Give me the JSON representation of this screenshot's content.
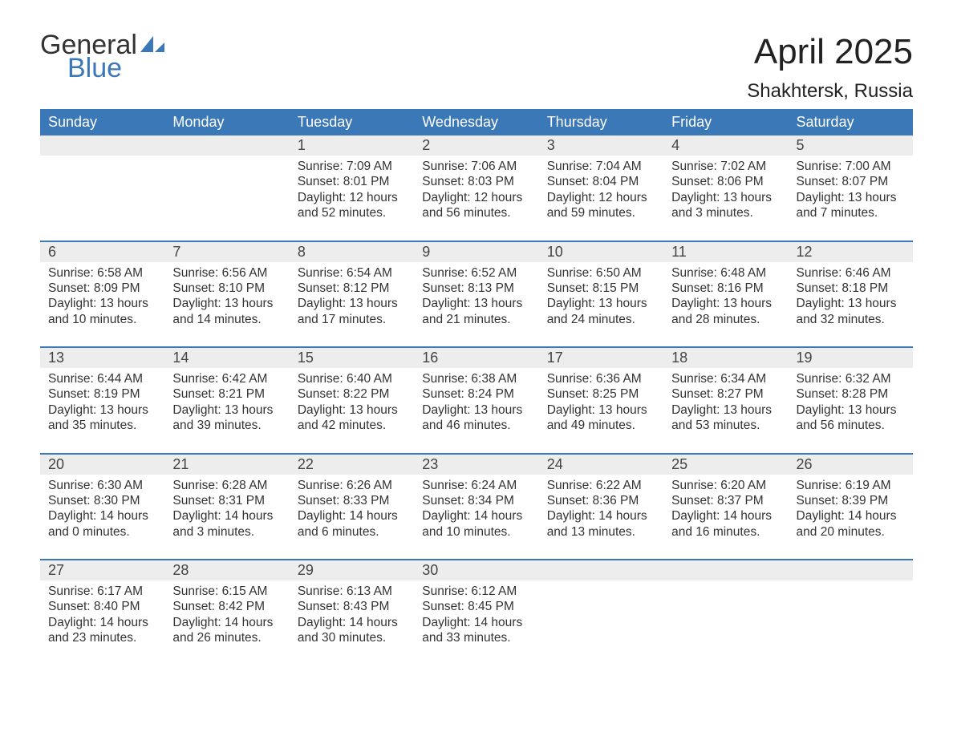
{
  "logo": {
    "word1": "General",
    "word2": "Blue",
    "accent_color": "#3b78b8"
  },
  "title": "April 2025",
  "location": "Shakhtersk, Russia",
  "colors": {
    "header_bg": "#3b78b8",
    "header_text": "#ffffff",
    "daynum_bg": "#ededed",
    "text": "#333333",
    "page_bg": "#ffffff"
  },
  "typography": {
    "title_fontsize": 44,
    "location_fontsize": 24,
    "dayhead_fontsize": 18,
    "daynum_fontsize": 18,
    "detail_fontsize": 15.5
  },
  "day_headers": [
    "Sunday",
    "Monday",
    "Tuesday",
    "Wednesday",
    "Thursday",
    "Friday",
    "Saturday"
  ],
  "weeks": [
    [
      null,
      null,
      {
        "n": "1",
        "sunrise": "7:09 AM",
        "sunset": "8:01 PM",
        "dl1": "12 hours",
        "dl2": "and 52 minutes."
      },
      {
        "n": "2",
        "sunrise": "7:06 AM",
        "sunset": "8:03 PM",
        "dl1": "12 hours",
        "dl2": "and 56 minutes."
      },
      {
        "n": "3",
        "sunrise": "7:04 AM",
        "sunset": "8:04 PM",
        "dl1": "12 hours",
        "dl2": "and 59 minutes."
      },
      {
        "n": "4",
        "sunrise": "7:02 AM",
        "sunset": "8:06 PM",
        "dl1": "13 hours",
        "dl2": "and 3 minutes."
      },
      {
        "n": "5",
        "sunrise": "7:00 AM",
        "sunset": "8:07 PM",
        "dl1": "13 hours",
        "dl2": "and 7 minutes."
      }
    ],
    [
      {
        "n": "6",
        "sunrise": "6:58 AM",
        "sunset": "8:09 PM",
        "dl1": "13 hours",
        "dl2": "and 10 minutes."
      },
      {
        "n": "7",
        "sunrise": "6:56 AM",
        "sunset": "8:10 PM",
        "dl1": "13 hours",
        "dl2": "and 14 minutes."
      },
      {
        "n": "8",
        "sunrise": "6:54 AM",
        "sunset": "8:12 PM",
        "dl1": "13 hours",
        "dl2": "and 17 minutes."
      },
      {
        "n": "9",
        "sunrise": "6:52 AM",
        "sunset": "8:13 PM",
        "dl1": "13 hours",
        "dl2": "and 21 minutes."
      },
      {
        "n": "10",
        "sunrise": "6:50 AM",
        "sunset": "8:15 PM",
        "dl1": "13 hours",
        "dl2": "and 24 minutes."
      },
      {
        "n": "11",
        "sunrise": "6:48 AM",
        "sunset": "8:16 PM",
        "dl1": "13 hours",
        "dl2": "and 28 minutes."
      },
      {
        "n": "12",
        "sunrise": "6:46 AM",
        "sunset": "8:18 PM",
        "dl1": "13 hours",
        "dl2": "and 32 minutes."
      }
    ],
    [
      {
        "n": "13",
        "sunrise": "6:44 AM",
        "sunset": "8:19 PM",
        "dl1": "13 hours",
        "dl2": "and 35 minutes."
      },
      {
        "n": "14",
        "sunrise": "6:42 AM",
        "sunset": "8:21 PM",
        "dl1": "13 hours",
        "dl2": "and 39 minutes."
      },
      {
        "n": "15",
        "sunrise": "6:40 AM",
        "sunset": "8:22 PM",
        "dl1": "13 hours",
        "dl2": "and 42 minutes."
      },
      {
        "n": "16",
        "sunrise": "6:38 AM",
        "sunset": "8:24 PM",
        "dl1": "13 hours",
        "dl2": "and 46 minutes."
      },
      {
        "n": "17",
        "sunrise": "6:36 AM",
        "sunset": "8:25 PM",
        "dl1": "13 hours",
        "dl2": "and 49 minutes."
      },
      {
        "n": "18",
        "sunrise": "6:34 AM",
        "sunset": "8:27 PM",
        "dl1": "13 hours",
        "dl2": "and 53 minutes."
      },
      {
        "n": "19",
        "sunrise": "6:32 AM",
        "sunset": "8:28 PM",
        "dl1": "13 hours",
        "dl2": "and 56 minutes."
      }
    ],
    [
      {
        "n": "20",
        "sunrise": "6:30 AM",
        "sunset": "8:30 PM",
        "dl1": "14 hours",
        "dl2": "and 0 minutes."
      },
      {
        "n": "21",
        "sunrise": "6:28 AM",
        "sunset": "8:31 PM",
        "dl1": "14 hours",
        "dl2": "and 3 minutes."
      },
      {
        "n": "22",
        "sunrise": "6:26 AM",
        "sunset": "8:33 PM",
        "dl1": "14 hours",
        "dl2": "and 6 minutes."
      },
      {
        "n": "23",
        "sunrise": "6:24 AM",
        "sunset": "8:34 PM",
        "dl1": "14 hours",
        "dl2": "and 10 minutes."
      },
      {
        "n": "24",
        "sunrise": "6:22 AM",
        "sunset": "8:36 PM",
        "dl1": "14 hours",
        "dl2": "and 13 minutes."
      },
      {
        "n": "25",
        "sunrise": "6:20 AM",
        "sunset": "8:37 PM",
        "dl1": "14 hours",
        "dl2": "and 16 minutes."
      },
      {
        "n": "26",
        "sunrise": "6:19 AM",
        "sunset": "8:39 PM",
        "dl1": "14 hours",
        "dl2": "and 20 minutes."
      }
    ],
    [
      {
        "n": "27",
        "sunrise": "6:17 AM",
        "sunset": "8:40 PM",
        "dl1": "14 hours",
        "dl2": "and 23 minutes."
      },
      {
        "n": "28",
        "sunrise": "6:15 AM",
        "sunset": "8:42 PM",
        "dl1": "14 hours",
        "dl2": "and 26 minutes."
      },
      {
        "n": "29",
        "sunrise": "6:13 AM",
        "sunset": "8:43 PM",
        "dl1": "14 hours",
        "dl2": "and 30 minutes."
      },
      {
        "n": "30",
        "sunrise": "6:12 AM",
        "sunset": "8:45 PM",
        "dl1": "14 hours",
        "dl2": "and 33 minutes."
      },
      null,
      null,
      null
    ]
  ],
  "labels": {
    "sunrise": "Sunrise: ",
    "sunset": "Sunset: ",
    "daylight": "Daylight: "
  }
}
